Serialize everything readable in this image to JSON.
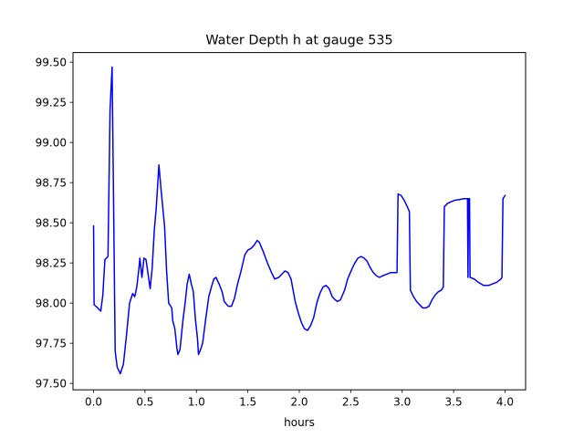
{
  "chart_data": {
    "type": "line",
    "title": "Water Depth h at gauge 535",
    "xlabel": "hours",
    "ylabel": "",
    "xlim": [
      -0.2,
      4.2
    ],
    "ylim": [
      97.46,
      99.56
    ],
    "x_ticks": [
      0.0,
      0.5,
      1.0,
      1.5,
      2.0,
      2.5,
      3.0,
      3.5,
      4.0
    ],
    "x_tick_labels": [
      "0.0",
      "0.5",
      "1.0",
      "1.5",
      "2.0",
      "2.5",
      "3.0",
      "3.5",
      "4.0"
    ],
    "y_ticks": [
      97.5,
      97.75,
      98.0,
      98.25,
      98.5,
      98.75,
      99.0,
      99.25,
      99.5
    ],
    "y_tick_labels": [
      "97.50",
      "97.75",
      "98.00",
      "98.25",
      "98.50",
      "98.75",
      "99.00",
      "99.25",
      "99.50"
    ],
    "grid": false,
    "legend": "none",
    "series": [
      {
        "color": "#0000ff",
        "points": [
          [
            0.0,
            98.48
          ],
          [
            0.005,
            97.99
          ],
          [
            0.04,
            97.97
          ],
          [
            0.07,
            97.95
          ],
          [
            0.09,
            98.05
          ],
          [
            0.11,
            98.27
          ],
          [
            0.14,
            98.29
          ],
          [
            0.16,
            99.2
          ],
          [
            0.18,
            99.47
          ],
          [
            0.2,
            98.3
          ],
          [
            0.21,
            97.7
          ],
          [
            0.23,
            97.6
          ],
          [
            0.26,
            97.56
          ],
          [
            0.29,
            97.62
          ],
          [
            0.32,
            97.8
          ],
          [
            0.35,
            98.0
          ],
          [
            0.38,
            98.06
          ],
          [
            0.4,
            98.04
          ],
          [
            0.42,
            98.1
          ],
          [
            0.44,
            98.21
          ],
          [
            0.45,
            98.28
          ],
          [
            0.47,
            98.16
          ],
          [
            0.49,
            98.28
          ],
          [
            0.51,
            98.27
          ],
          [
            0.53,
            98.18
          ],
          [
            0.55,
            98.09
          ],
          [
            0.57,
            98.22
          ],
          [
            0.59,
            98.45
          ],
          [
            0.61,
            98.6
          ],
          [
            0.635,
            98.86
          ],
          [
            0.66,
            98.68
          ],
          [
            0.69,
            98.48
          ],
          [
            0.71,
            98.2
          ],
          [
            0.73,
            98.0
          ],
          [
            0.76,
            97.97
          ],
          [
            0.77,
            97.89
          ],
          [
            0.79,
            97.84
          ],
          [
            0.81,
            97.72
          ],
          [
            0.82,
            97.68
          ],
          [
            0.84,
            97.71
          ],
          [
            0.87,
            97.9
          ],
          [
            0.89,
            98.0
          ],
          [
            0.91,
            98.12
          ],
          [
            0.93,
            98.18
          ],
          [
            0.95,
            98.12
          ],
          [
            0.97,
            98.07
          ],
          [
            0.99,
            97.9
          ],
          [
            1.01,
            97.78
          ],
          [
            1.02,
            97.68
          ],
          [
            1.04,
            97.71
          ],
          [
            1.06,
            97.75
          ],
          [
            1.09,
            97.9
          ],
          [
            1.12,
            98.04
          ],
          [
            1.15,
            98.11
          ],
          [
            1.17,
            98.15
          ],
          [
            1.19,
            98.16
          ],
          [
            1.22,
            98.12
          ],
          [
            1.25,
            98.07
          ],
          [
            1.27,
            98.01
          ],
          [
            1.31,
            97.98
          ],
          [
            1.34,
            97.98
          ],
          [
            1.37,
            98.03
          ],
          [
            1.4,
            98.12
          ],
          [
            1.43,
            98.19
          ],
          [
            1.47,
            98.3
          ],
          [
            1.5,
            98.33
          ],
          [
            1.53,
            98.34
          ],
          [
            1.56,
            98.36
          ],
          [
            1.59,
            98.39
          ],
          [
            1.61,
            98.38
          ],
          [
            1.65,
            98.32
          ],
          [
            1.69,
            98.25
          ],
          [
            1.73,
            98.19
          ],
          [
            1.76,
            98.15
          ],
          [
            1.8,
            98.16
          ],
          [
            1.83,
            98.18
          ],
          [
            1.86,
            98.2
          ],
          [
            1.89,
            98.19
          ],
          [
            1.92,
            98.15
          ],
          [
            1.94,
            98.08
          ],
          [
            1.96,
            98.01
          ],
          [
            1.99,
            97.94
          ],
          [
            2.02,
            97.88
          ],
          [
            2.05,
            97.84
          ],
          [
            2.08,
            97.83
          ],
          [
            2.11,
            97.86
          ],
          [
            2.14,
            97.91
          ],
          [
            2.17,
            98.0
          ],
          [
            2.2,
            98.06
          ],
          [
            2.23,
            98.1
          ],
          [
            2.26,
            98.11
          ],
          [
            2.29,
            98.09
          ],
          [
            2.32,
            98.04
          ],
          [
            2.35,
            98.02
          ],
          [
            2.37,
            98.01
          ],
          [
            2.4,
            98.02
          ],
          [
            2.44,
            98.08
          ],
          [
            2.47,
            98.15
          ],
          [
            2.51,
            98.21
          ],
          [
            2.54,
            98.25
          ],
          [
            2.57,
            98.28
          ],
          [
            2.6,
            98.29
          ],
          [
            2.63,
            98.28
          ],
          [
            2.66,
            98.26
          ],
          [
            2.69,
            98.22
          ],
          [
            2.72,
            98.19
          ],
          [
            2.75,
            98.17
          ],
          [
            2.78,
            98.16
          ],
          [
            2.81,
            98.17
          ],
          [
            2.85,
            98.18
          ],
          [
            2.89,
            98.19
          ],
          [
            2.95,
            98.19
          ],
          [
            2.96,
            98.68
          ],
          [
            2.99,
            98.67
          ],
          [
            3.02,
            98.64
          ],
          [
            3.05,
            98.6
          ],
          [
            3.07,
            98.57
          ],
          [
            3.08,
            98.08
          ],
          [
            3.11,
            98.04
          ],
          [
            3.14,
            98.01
          ],
          [
            3.17,
            97.99
          ],
          [
            3.2,
            97.97
          ],
          [
            3.23,
            97.97
          ],
          [
            3.26,
            97.98
          ],
          [
            3.29,
            98.02
          ],
          [
            3.32,
            98.05
          ],
          [
            3.35,
            98.07
          ],
          [
            3.38,
            98.08
          ],
          [
            3.4,
            98.1
          ],
          [
            3.41,
            98.6
          ],
          [
            3.44,
            98.62
          ],
          [
            3.47,
            98.63
          ],
          [
            3.51,
            98.64
          ],
          [
            3.56,
            98.645
          ],
          [
            3.6,
            98.65
          ],
          [
            3.635,
            98.65
          ],
          [
            3.64,
            98.16
          ],
          [
            3.645,
            98.65
          ],
          [
            3.655,
            98.65
          ],
          [
            3.66,
            98.16
          ],
          [
            3.7,
            98.15
          ],
          [
            3.74,
            98.13
          ],
          [
            3.79,
            98.11
          ],
          [
            3.84,
            98.11
          ],
          [
            3.88,
            98.12
          ],
          [
            3.92,
            98.13
          ],
          [
            3.96,
            98.15
          ],
          [
            3.97,
            98.16
          ],
          [
            3.98,
            98.65
          ],
          [
            4.0,
            98.67
          ]
        ]
      }
    ]
  }
}
